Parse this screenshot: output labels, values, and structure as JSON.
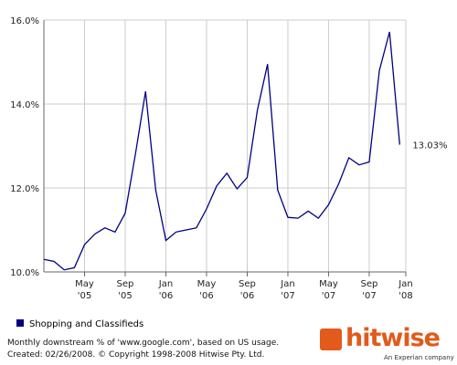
{
  "chart_data": {
    "type": "line",
    "series": [
      {
        "name": "Shopping and Classifieds",
        "color": "#000080",
        "values": [
          10.3,
          10.25,
          10.05,
          10.1,
          10.65,
          10.9,
          11.05,
          10.95,
          11.4,
          12.8,
          14.3,
          11.95,
          10.75,
          10.95,
          11.0,
          11.05,
          11.5,
          12.05,
          12.35,
          11.98,
          12.25,
          13.85,
          14.95,
          11.95,
          11.3,
          11.28,
          11.45,
          11.28,
          11.6,
          12.1,
          12.72,
          12.55,
          12.62,
          14.8,
          15.72,
          13.03
        ],
        "end_label": "13.03%"
      }
    ],
    "x": [
      0,
      1,
      2,
      3,
      4,
      5,
      6,
      7,
      8,
      9,
      10,
      11,
      12,
      13,
      14,
      15,
      16,
      17,
      18,
      19,
      20,
      21,
      22,
      23,
      24,
      25,
      26,
      27,
      28,
      29,
      30,
      31,
      32,
      33,
      34,
      35
    ],
    "xlim": [
      0,
      35.6
    ],
    "xticks": [
      {
        "value": 4,
        "label": [
          "May",
          "'05"
        ]
      },
      {
        "value": 8,
        "label": [
          "Sep",
          "'05"
        ]
      },
      {
        "value": 12,
        "label": [
          "Jan",
          "'06"
        ]
      },
      {
        "value": 16,
        "label": [
          "May",
          "'06"
        ]
      },
      {
        "value": 20,
        "label": [
          "Sep",
          "'06"
        ]
      },
      {
        "value": 24,
        "label": [
          "Jan",
          "'07"
        ]
      },
      {
        "value": 28,
        "label": [
          "May",
          "'07"
        ]
      },
      {
        "value": 32,
        "label": [
          "Sep",
          "'07"
        ]
      },
      {
        "value": 35.6,
        "label": [
          "Jan",
          "'08"
        ]
      }
    ],
    "ylim": [
      10,
      16
    ],
    "yticks": [
      {
        "value": 10,
        "label": "10.0%"
      },
      {
        "value": 12,
        "label": "12.0%"
      },
      {
        "value": 14,
        "label": "14.0%"
      },
      {
        "value": 16,
        "label": "16.0%"
      }
    ],
    "grid": true,
    "footnote": [
      "Monthly downstream % of 'www.google.com', based on US usage.",
      "Created: 02/26/2008. © Copyright 1998-2008 Hitwise Pty. Ltd."
    ],
    "brand": {
      "name": "hitwise",
      "tagline": "An Experian company"
    }
  }
}
